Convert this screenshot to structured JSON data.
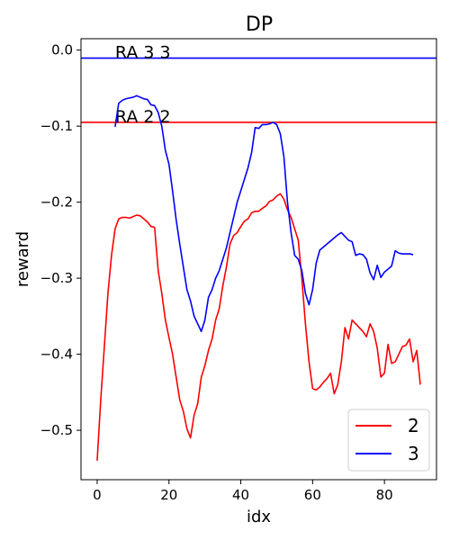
{
  "chart_data": {
    "type": "line",
    "title": "DP",
    "xlabel": "idx",
    "ylabel": "reward",
    "xlim": [
      -4.5,
      94.5
    ],
    "ylim": [
      -0.565,
      0.015
    ],
    "xticks": [
      0,
      20,
      40,
      60,
      80
    ],
    "xtick_labels": [
      "0",
      "20",
      "40",
      "60",
      "80"
    ],
    "yticks": [
      0.0,
      -0.1,
      -0.2,
      -0.3,
      -0.4,
      -0.5
    ],
    "ytick_labels": [
      "0.0",
      "−0.1",
      "−0.2",
      "−0.3",
      "−0.4",
      "−0.5"
    ],
    "grid": false,
    "legend_position": "lower-right",
    "hlines": [
      {
        "y": -0.095,
        "color": "#ff0000",
        "label": "RA 2 2",
        "label_x": 5
      },
      {
        "y": -0.0105,
        "color": "#0000ff",
        "label": "RA 3 3",
        "label_x": 5
      }
    ],
    "series": [
      {
        "name": "2",
        "color": "#ff0000",
        "x": [
          0,
          1,
          2,
          3,
          4,
          5,
          6,
          7,
          8,
          9,
          10,
          11,
          12,
          13,
          14,
          15,
          16,
          17,
          18,
          19,
          20,
          21,
          22,
          23,
          24,
          25,
          26,
          27,
          28,
          29,
          30,
          31,
          32,
          33,
          34,
          35,
          36,
          37,
          38,
          39,
          40,
          41,
          42,
          43,
          44,
          45,
          46,
          47,
          48,
          49,
          50,
          51,
          52,
          53,
          54,
          55,
          56,
          57,
          58,
          59,
          60,
          61,
          62,
          63,
          64,
          65,
          66,
          67,
          68,
          69,
          70,
          71,
          72,
          73,
          74,
          75,
          76,
          77,
          78,
          79,
          80,
          81,
          82,
          83,
          84,
          85,
          86,
          87,
          88,
          89,
          90
        ],
        "y": [
          -0.54,
          -0.46,
          -0.39,
          -0.32,
          -0.27,
          -0.235,
          -0.222,
          -0.22,
          -0.22,
          -0.221,
          -0.219,
          -0.217,
          -0.218,
          -0.222,
          -0.226,
          -0.232,
          -0.233,
          -0.29,
          -0.32,
          -0.355,
          -0.378,
          -0.4,
          -0.43,
          -0.46,
          -0.475,
          -0.498,
          -0.51,
          -0.48,
          -0.465,
          -0.43,
          -0.415,
          -0.395,
          -0.38,
          -0.355,
          -0.34,
          -0.31,
          -0.285,
          -0.255,
          -0.244,
          -0.24,
          -0.232,
          -0.225,
          -0.222,
          -0.214,
          -0.212,
          -0.212,
          -0.208,
          -0.205,
          -0.199,
          -0.197,
          -0.192,
          -0.189,
          -0.196,
          -0.21,
          -0.22,
          -0.235,
          -0.25,
          -0.3,
          -0.36,
          -0.41,
          -0.445,
          -0.447,
          -0.443,
          -0.437,
          -0.432,
          -0.425,
          -0.452,
          -0.44,
          -0.41,
          -0.365,
          -0.38,
          -0.355,
          -0.36,
          -0.365,
          -0.37,
          -0.377,
          -0.36,
          -0.37,
          -0.392,
          -0.43,
          -0.425,
          -0.387,
          -0.412,
          -0.41,
          -0.4,
          -0.39,
          -0.388,
          -0.38,
          -0.41,
          -0.395,
          -0.44
        ]
      },
      {
        "name": "3",
        "color": "#0000ff",
        "x": [
          5,
          6,
          7,
          8,
          9,
          10,
          11,
          12,
          13,
          14,
          15,
          16,
          17,
          18,
          19,
          20,
          21,
          22,
          23,
          24,
          25,
          26,
          27,
          28,
          29,
          30,
          31,
          32,
          33,
          34,
          35,
          36,
          37,
          38,
          39,
          40,
          41,
          42,
          43,
          44,
          45,
          46,
          47,
          48,
          49,
          50,
          51,
          52,
          53,
          54,
          55,
          56,
          57,
          58,
          59,
          60,
          61,
          62,
          63,
          64,
          65,
          66,
          67,
          68,
          69,
          70,
          71,
          72,
          73,
          74,
          75,
          76,
          77,
          78,
          79,
          80,
          81,
          82,
          83,
          84,
          85,
          86,
          87,
          88
        ],
        "y": [
          -0.101,
          -0.07,
          -0.066,
          -0.064,
          -0.063,
          -0.062,
          -0.06,
          -0.062,
          -0.064,
          -0.065,
          -0.072,
          -0.073,
          -0.082,
          -0.1,
          -0.132,
          -0.15,
          -0.185,
          -0.223,
          -0.255,
          -0.285,
          -0.315,
          -0.33,
          -0.35,
          -0.36,
          -0.37,
          -0.355,
          -0.325,
          -0.315,
          -0.3,
          -0.29,
          -0.275,
          -0.26,
          -0.24,
          -0.22,
          -0.2,
          -0.185,
          -0.17,
          -0.155,
          -0.135,
          -0.102,
          -0.103,
          -0.098,
          -0.098,
          -0.097,
          -0.095,
          -0.098,
          -0.11,
          -0.14,
          -0.2,
          -0.24,
          -0.27,
          -0.275,
          -0.29,
          -0.32,
          -0.335,
          -0.315,
          -0.28,
          -0.263,
          -0.259,
          -0.255,
          -0.251,
          -0.247,
          -0.243,
          -0.24,
          -0.245,
          -0.25,
          -0.252,
          -0.27,
          -0.268,
          -0.269,
          -0.275,
          -0.293,
          -0.302,
          -0.283,
          -0.299,
          -0.292,
          -0.288,
          -0.284,
          -0.264,
          -0.267,
          -0.268,
          -0.268,
          -0.268,
          -0.269
        ]
      }
    ]
  }
}
